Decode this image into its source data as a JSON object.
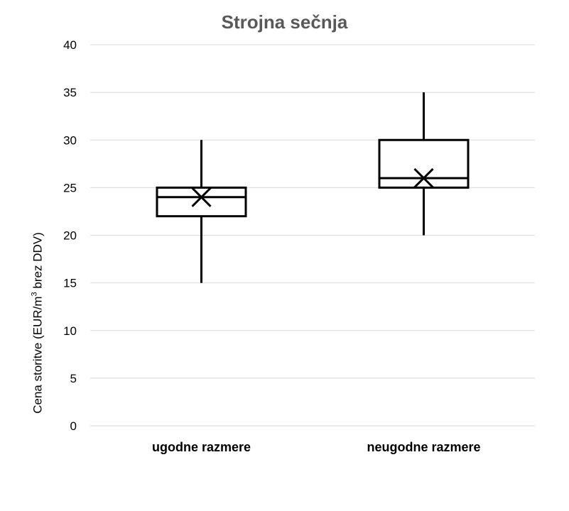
{
  "chart_data": {
    "type": "boxplot",
    "title": "Strojna sečnja",
    "ylabel_parts": [
      "Cena storitve  (EUR/m",
      "3",
      " brez DDV)"
    ],
    "ylim": [
      0,
      40
    ],
    "ytick_step": 5,
    "yticks": [
      "0",
      "5",
      "10",
      "15",
      "20",
      "25",
      "30",
      "35",
      "40"
    ],
    "grid": true,
    "categories": [
      "ugodne razmere",
      "neugodne razmere"
    ],
    "boxes": [
      {
        "category": "ugodne razmere",
        "min": 15,
        "q1": 22,
        "median": 24,
        "q3": 25,
        "max": 30,
        "mean": 24
      },
      {
        "category": "neugodne razmere",
        "min": 20,
        "q1": 25,
        "median": 26,
        "q3": 30,
        "max": 35,
        "mean": 26
      }
    ],
    "colors": {
      "grid": "#d9d9d9",
      "box": "#000000",
      "title": "#595959"
    }
  }
}
